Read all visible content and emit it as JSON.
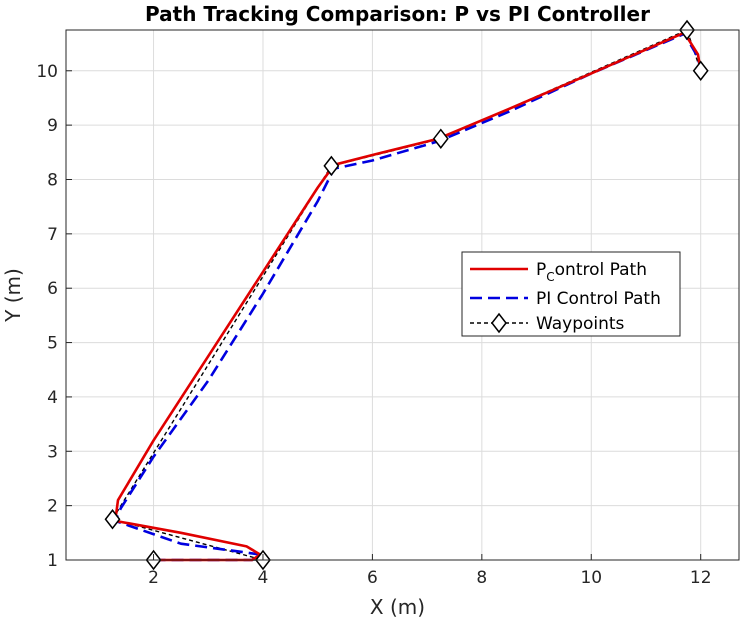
{
  "chart_data": {
    "type": "line",
    "title": "Path Tracking Comparison: P vs PI Controller",
    "xlabel": "X (m)",
    "ylabel": "Y (m)",
    "xlim": [
      0.4,
      12.7
    ],
    "ylim": [
      1,
      10.75
    ],
    "xticks": [
      2,
      4,
      6,
      8,
      10,
      12
    ],
    "yticks": [
      1,
      2,
      3,
      4,
      5,
      6,
      7,
      8,
      9,
      10
    ],
    "grid": true,
    "legend_position": "right-center",
    "series": [
      {
        "name": "P_Control Path",
        "legend_main": "P",
        "legend_sub": "C",
        "legend_rest": "ontrol Path",
        "color": "#e00000",
        "style": "solid",
        "x": [
          2.0,
          3.0,
          3.8,
          3.95,
          3.7,
          2.5,
          1.3,
          1.35,
          2.0,
          3.0,
          4.0,
          5.0,
          5.3,
          6.0,
          7.2,
          8.5,
          10.0,
          11.7,
          11.95,
          12.0
        ],
        "y": [
          1.0,
          1.0,
          1.0,
          1.1,
          1.25,
          1.5,
          1.72,
          2.1,
          3.2,
          4.75,
          6.3,
          7.85,
          8.27,
          8.45,
          8.75,
          9.3,
          9.95,
          10.7,
          10.3,
          10.0
        ]
      },
      {
        "name": "PI Control Path",
        "color": "#0000e0",
        "style": "dashed",
        "x": [
          2.0,
          3.0,
          3.8,
          3.95,
          3.6,
          2.5,
          1.3,
          1.4,
          2.0,
          3.0,
          4.0,
          5.0,
          5.3,
          6.0,
          7.2,
          8.5,
          10.0,
          11.7,
          11.95,
          12.0
        ],
        "y": [
          1.0,
          1.0,
          1.0,
          1.1,
          1.15,
          1.3,
          1.72,
          1.95,
          2.9,
          4.3,
          5.9,
          7.6,
          8.2,
          8.35,
          8.7,
          9.25,
          9.95,
          10.68,
          10.25,
          10.0
        ]
      },
      {
        "name": "Waypoints",
        "color": "#000000",
        "style": "dashed-diamond",
        "x": [
          2.0,
          4.0,
          1.25,
          5.25,
          7.25,
          11.75,
          12.0
        ],
        "y": [
          1.0,
          1.0,
          1.75,
          8.25,
          8.75,
          10.75,
          10.0
        ]
      }
    ]
  }
}
